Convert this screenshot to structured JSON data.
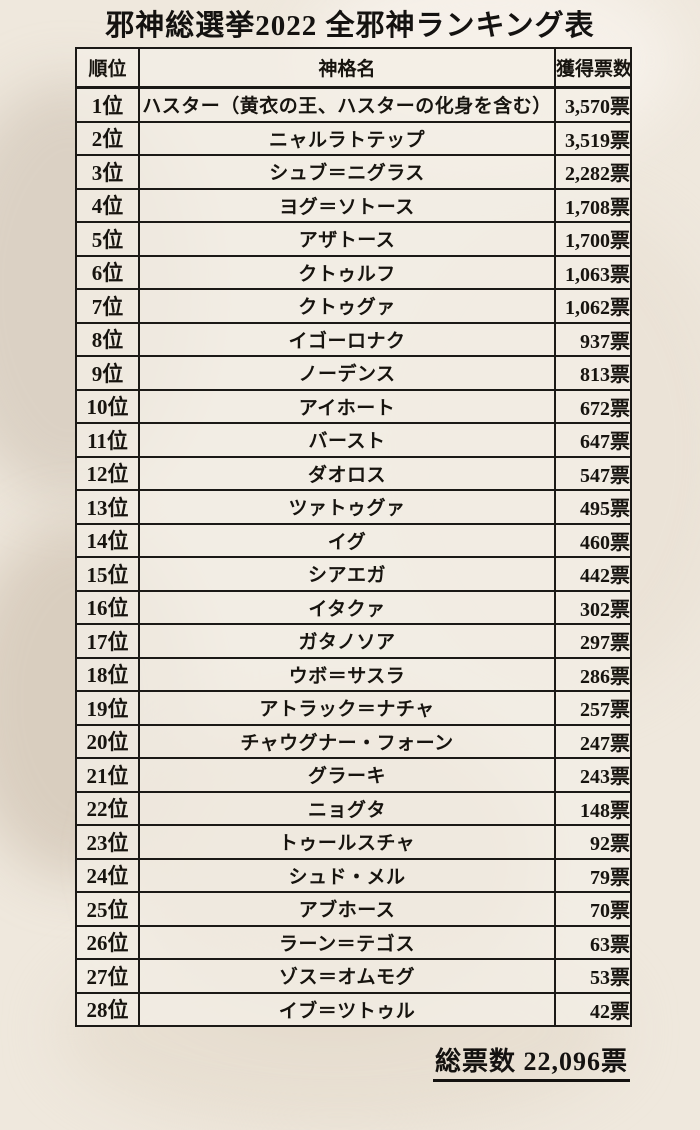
{
  "title": "邪神総選挙2022 全邪神ランキング表",
  "table": {
    "headers": {
      "rank": "順位",
      "name": "神格名",
      "votes": "獲得票数"
    },
    "rows": [
      {
        "rank": "1位",
        "name": "ハスター（黄衣の王、ハスターの化身を含む）",
        "votes": "3,570票"
      },
      {
        "rank": "2位",
        "name": "ニャルラトテップ",
        "votes": "3,519票"
      },
      {
        "rank": "3位",
        "name": "シュブ＝ニグラス",
        "votes": "2,282票"
      },
      {
        "rank": "4位",
        "name": "ヨグ＝ソトース",
        "votes": "1,708票"
      },
      {
        "rank": "5位",
        "name": "アザトース",
        "votes": "1,700票"
      },
      {
        "rank": "6位",
        "name": "クトゥルフ",
        "votes": "1,063票"
      },
      {
        "rank": "7位",
        "name": "クトゥグァ",
        "votes": "1,062票"
      },
      {
        "rank": "8位",
        "name": "イゴーロナク",
        "votes": "937票"
      },
      {
        "rank": "9位",
        "name": "ノーデンス",
        "votes": "813票"
      },
      {
        "rank": "10位",
        "name": "アイホート",
        "votes": "672票"
      },
      {
        "rank": "11位",
        "name": "バースト",
        "votes": "647票"
      },
      {
        "rank": "12位",
        "name": "ダオロス",
        "votes": "547票"
      },
      {
        "rank": "13位",
        "name": "ツァトゥグァ",
        "votes": "495票"
      },
      {
        "rank": "14位",
        "name": "イグ",
        "votes": "460票"
      },
      {
        "rank": "15位",
        "name": "シアエガ",
        "votes": "442票"
      },
      {
        "rank": "16位",
        "name": "イタクァ",
        "votes": "302票"
      },
      {
        "rank": "17位",
        "name": "ガタノソア",
        "votes": "297票"
      },
      {
        "rank": "18位",
        "name": "ウボ＝サスラ",
        "votes": "286票"
      },
      {
        "rank": "19位",
        "name": "アトラック＝ナチャ",
        "votes": "257票"
      },
      {
        "rank": "20位",
        "name": "チャウグナー・フォーン",
        "votes": "247票"
      },
      {
        "rank": "21位",
        "name": "グラーキ",
        "votes": "243票"
      },
      {
        "rank": "22位",
        "name": "ニョグタ",
        "votes": "148票"
      },
      {
        "rank": "23位",
        "name": "トゥールスチャ",
        "votes": "92票"
      },
      {
        "rank": "24位",
        "name": "シュド・メル",
        "votes": "79票"
      },
      {
        "rank": "25位",
        "name": "アブホース",
        "votes": "70票"
      },
      {
        "rank": "26位",
        "name": "ラーン＝テゴス",
        "votes": "63票"
      },
      {
        "rank": "27位",
        "name": "ゾス＝オムモグ",
        "votes": "53票"
      },
      {
        "rank": "28位",
        "name": "イブ＝ツトゥル",
        "votes": "42票"
      }
    ]
  },
  "footer": {
    "total": "総票数 22,096票"
  },
  "colors": {
    "page_background": "#efe8dd",
    "cell_background": "#f3eee5",
    "border": "#1b1916",
    "text": "#17140f"
  }
}
